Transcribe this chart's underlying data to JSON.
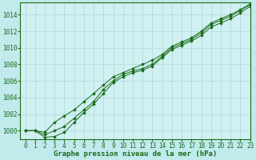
{
  "background_color": "#c0eaec",
  "plot_bg_color": "#d0f0f2",
  "grid_color": "#b0d8d8",
  "line_color": "#1a6b1a",
  "marker_color": "#1a6b1a",
  "xlim": [
    -0.5,
    23
  ],
  "ylim": [
    999.0,
    1015.5
  ],
  "yticks": [
    1000,
    1002,
    1004,
    1006,
    1008,
    1010,
    1012,
    1014
  ],
  "xticks": [
    0,
    1,
    2,
    3,
    4,
    5,
    6,
    7,
    8,
    9,
    10,
    11,
    12,
    13,
    14,
    15,
    16,
    17,
    18,
    19,
    20,
    21,
    22,
    23
  ],
  "series": [
    [
      1000.0,
      1000.0,
      999.5,
      1000.0,
      1000.5,
      1001.5,
      1002.5,
      1003.5,
      1005.0,
      1006.0,
      1006.8,
      1007.2,
      1007.5,
      1008.0,
      1009.0,
      1010.0,
      1010.5,
      1011.0,
      1011.8,
      1012.8,
      1013.3,
      1013.8,
      1014.5,
      1015.2
    ],
    [
      1000.0,
      1000.0,
      999.2,
      999.3,
      999.8,
      1001.0,
      1002.2,
      1003.2,
      1004.5,
      1005.8,
      1006.5,
      1007.0,
      1007.3,
      1007.8,
      1008.8,
      1009.8,
      1010.3,
      1010.8,
      1011.5,
      1012.5,
      1013.0,
      1013.5,
      1014.2,
      1015.0
    ],
    [
      1000.0,
      1000.0,
      999.8,
      1001.0,
      1001.8,
      1002.5,
      1003.5,
      1004.5,
      1005.5,
      1006.5,
      1007.0,
      1007.5,
      1008.0,
      1008.5,
      1009.2,
      1010.2,
      1010.7,
      1011.2,
      1012.0,
      1013.0,
      1013.5,
      1014.0,
      1014.6,
      1015.3
    ]
  ],
  "xlabel": "Graphe pression niveau de la mer (hPa)",
  "tick_fontsize": 5.5,
  "label_fontsize": 6.5
}
